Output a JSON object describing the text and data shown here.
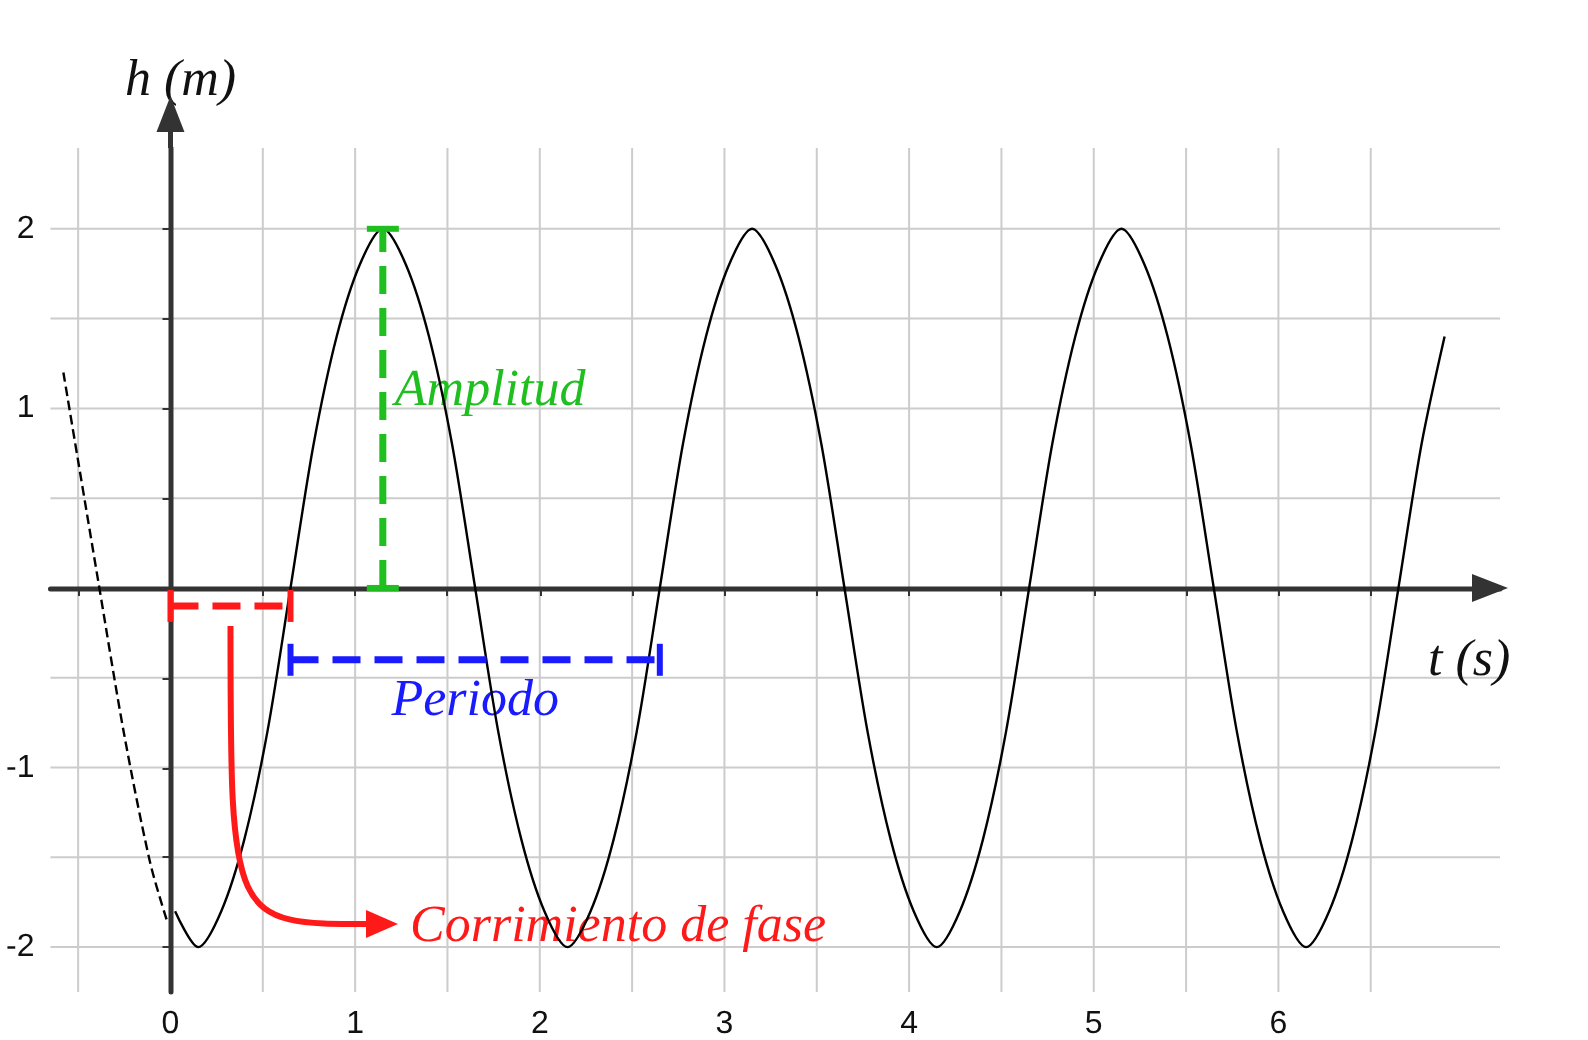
{
  "chart_data": {
    "type": "line",
    "xlabel": "t (s)",
    "ylabel": "h (m)",
    "xlim": [
      -0.65,
      7.2
    ],
    "ylim": [
      -2.25,
      2.45
    ],
    "xticks": [
      {
        "value": -0.5,
        "label": null
      },
      0,
      {
        "value": 0.5,
        "label": null
      },
      1,
      {
        "value": 1.5,
        "label": null
      },
      2,
      {
        "value": 2.5,
        "label": null
      },
      3,
      {
        "value": 3.5,
        "label": null
      },
      4,
      {
        "value": 4.5,
        "label": null
      },
      5,
      {
        "value": 5.5,
        "label": null
      },
      6,
      {
        "value": 6.5,
        "label": null
      }
    ],
    "yticks": [
      -2,
      {
        "value": -1.5,
        "label": null
      },
      -1,
      {
        "value": -0.5,
        "label": null
      },
      {
        "value": 0,
        "label": null
      },
      {
        "value": 0.5,
        "label": null
      },
      1,
      {
        "value": 1.5,
        "label": null
      },
      2
    ],
    "grid": true,
    "series": [
      {
        "color": "#000000",
        "line_style": "solid",
        "x": [
          0.025,
          0.15,
          0.275,
          0.4,
          0.525,
          0.65,
          0.775,
          0.9,
          1.025,
          1.15,
          1.275,
          1.4,
          1.525,
          1.65,
          1.775,
          1.9,
          2.025,
          2.15,
          2.275,
          2.4,
          2.525,
          2.65,
          2.775,
          2.9,
          3.025,
          3.15,
          3.275,
          3.4,
          3.525,
          3.65,
          3.775,
          3.9,
          4.025,
          4.15,
          4.275,
          4.4,
          4.525,
          4.65,
          4.775,
          4.9,
          5.025,
          5.15,
          5.275,
          5.4,
          5.525,
          5.65,
          5.775,
          5.9,
          6.025,
          6.15,
          6.275,
          6.4,
          6.525,
          6.65,
          6.775,
          6.9
        ],
        "values": [
          -1.8,
          -2,
          -1.8,
          -1.4,
          -0.8,
          0,
          0.8,
          1.4,
          1.8,
          2,
          1.8,
          1.4,
          0.8,
          0,
          -0.8,
          -1.4,
          -1.8,
          -2,
          -1.8,
          -1.4,
          -0.8,
          0,
          0.8,
          1.4,
          1.8,
          2,
          1.8,
          1.4,
          0.8,
          0,
          -0.8,
          -1.4,
          -1.8,
          -2,
          -1.8,
          -1.4,
          -0.8,
          0,
          0.8,
          1.4,
          1.8,
          2,
          1.8,
          1.4,
          0.8,
          0,
          -0.8,
          -1.4,
          -1.8,
          -2,
          -1.8,
          -1.4,
          -0.8,
          0,
          0.8,
          1.4
        ]
      },
      {
        "color": "#000000",
        "line_style": "dashed",
        "x": [
          -0.58,
          -0.39,
          -0.25,
          -0.11,
          -0.02
        ],
        "values": [
          1.2,
          0.03,
          -0.82,
          -1.53,
          -1.85
        ]
      },
      {
        "name": "Amplitud",
        "color": "#1fbf1f",
        "line_style": "dashed",
        "x": [
          1.15,
          1.15
        ],
        "values": [
          0,
          2
        ]
      },
      {
        "name": "Periodo",
        "color": "#1a1aff",
        "line_style": "dashed",
        "x": [
          0.65,
          2.65
        ],
        "values": [
          -0.4,
          -0.4
        ]
      },
      {
        "color": "#ff1a1a",
        "line_style": "dashed",
        "x": [
          0,
          0.65
        ],
        "values": [
          -0.1,
          -0.1
        ]
      }
    ],
    "annotations": [
      "Corrimiento de fase"
    ]
  }
}
